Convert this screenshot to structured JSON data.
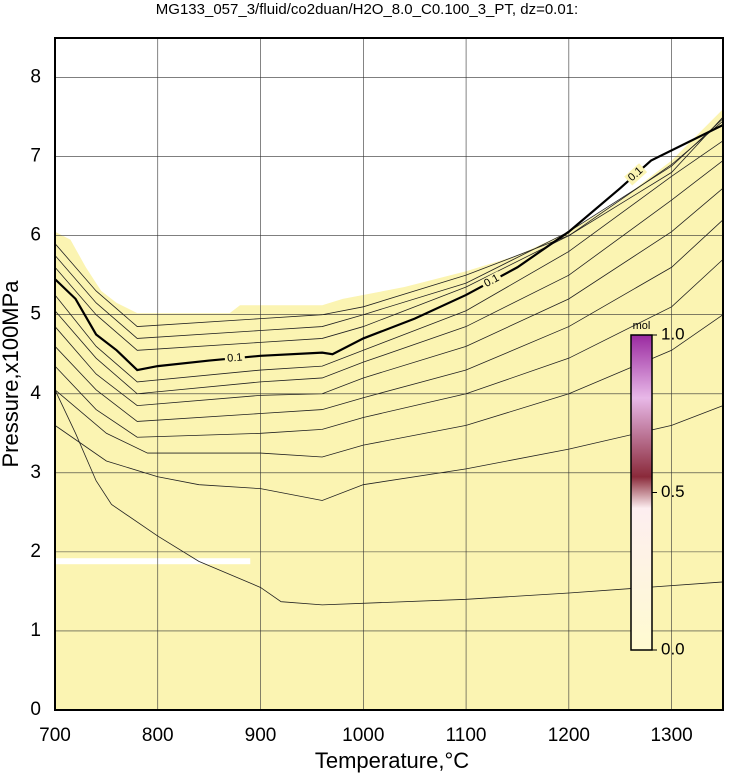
{
  "chart_data": {
    "type": "contour",
    "title": "MG133_057_3/fluid/co2duan/H2O_8.0_C0.100_3_PT, dz=0.01:",
    "xlabel": "Temperature,°C",
    "ylabel": "Pressure,x100MPa",
    "xlim": [
      700,
      1350
    ],
    "ylim": [
      0,
      8.5
    ],
    "xticks": [
      700,
      800,
      900,
      1000,
      1100,
      1200,
      1300
    ],
    "yticks": [
      0,
      1,
      2,
      3,
      4,
      5,
      6,
      7,
      8
    ],
    "grid": true,
    "domain_top": {
      "color": "#fbf4b2",
      "x": [
        700,
        715,
        730,
        745,
        760,
        780,
        870,
        880,
        960,
        980,
        1040,
        1100,
        1150,
        1200,
        1250,
        1300,
        1350
      ],
      "y": [
        6.05,
        5.95,
        5.6,
        5.3,
        5.15,
        5.02,
        5.02,
        5.12,
        5.12,
        5.2,
        5.35,
        5.55,
        5.75,
        6.05,
        6.45,
        6.95,
        7.6
      ]
    },
    "contours": [
      {
        "x": [
          700,
          740,
          780,
          900,
          960,
          1000,
          1100,
          1200,
          1300,
          1350
        ],
        "y": [
          5.9,
          5.3,
          4.85,
          4.95,
          5.0,
          5.1,
          5.5,
          6.0,
          6.8,
          7.5
        ]
      },
      {
        "x": [
          700,
          740,
          780,
          900,
          960,
          1000,
          1100,
          1200,
          1300,
          1350
        ],
        "y": [
          5.75,
          5.15,
          4.7,
          4.8,
          4.85,
          5.0,
          5.4,
          6.05,
          6.88,
          7.48
        ]
      },
      {
        "x": [
          700,
          740,
          780,
          900,
          960,
          1000,
          1100,
          1200,
          1300,
          1350
        ],
        "y": [
          5.6,
          5.0,
          4.55,
          4.65,
          4.7,
          4.85,
          5.35,
          6.0,
          6.9,
          7.45
        ]
      },
      {
        "label": "0.1",
        "x": [
          700,
          720,
          740,
          760,
          780,
          800,
          850,
          900,
          960,
          970,
          1000,
          1050,
          1100,
          1150,
          1200,
          1250,
          1280,
          1350
        ],
        "y": [
          5.45,
          5.2,
          4.75,
          4.55,
          4.3,
          4.35,
          4.42,
          4.48,
          4.52,
          4.5,
          4.7,
          4.95,
          5.25,
          5.6,
          6.05,
          6.6,
          6.95,
          7.4
        ]
      },
      {
        "x": [
          700,
          740,
          780,
          900,
          960,
          1000,
          1100,
          1200,
          1300,
          1350
        ],
        "y": [
          5.25,
          4.6,
          4.15,
          4.3,
          4.35,
          4.55,
          5.05,
          5.8,
          6.75,
          7.2
        ]
      },
      {
        "x": [
          700,
          740,
          780,
          900,
          960,
          1000,
          1100,
          1200,
          1300,
          1350
        ],
        "y": [
          5.05,
          4.45,
          4.0,
          4.15,
          4.2,
          4.4,
          4.85,
          5.5,
          6.45,
          6.95
        ]
      },
      {
        "x": [
          700,
          740,
          780,
          900,
          960,
          1000,
          1100,
          1200,
          1300,
          1350
        ],
        "y": [
          4.85,
          4.25,
          3.85,
          3.98,
          4.0,
          4.2,
          4.6,
          5.2,
          6.05,
          6.6
        ]
      },
      {
        "x": [
          700,
          740,
          780,
          900,
          960,
          1000,
          1100,
          1200,
          1300,
          1350
        ],
        "y": [
          4.6,
          4.05,
          3.65,
          3.75,
          3.8,
          3.95,
          4.3,
          4.85,
          5.6,
          6.2
        ]
      },
      {
        "x": [
          700,
          740,
          780,
          900,
          960,
          1000,
          1100,
          1200,
          1300,
          1350
        ],
        "y": [
          4.35,
          3.8,
          3.45,
          3.5,
          3.55,
          3.7,
          4.0,
          4.45,
          5.1,
          5.7
        ]
      },
      {
        "x": [
          700,
          750,
          790,
          900,
          960,
          1000,
          1100,
          1200,
          1300,
          1350
        ],
        "y": [
          4.05,
          3.5,
          3.25,
          3.25,
          3.2,
          3.35,
          3.6,
          4.0,
          4.55,
          5.0
        ]
      },
      {
        "x": [
          700,
          750,
          800,
          840,
          900,
          960,
          1000,
          1100,
          1200,
          1300,
          1350
        ],
        "y": [
          3.6,
          3.15,
          2.95,
          2.85,
          2.8,
          2.65,
          2.85,
          3.05,
          3.3,
          3.6,
          3.85
        ]
      },
      {
        "x": [
          700,
          720,
          740,
          755,
          800,
          840,
          900,
          920,
          960,
          1100,
          1200,
          1350
        ],
        "y": [
          4.05,
          3.5,
          2.9,
          2.6,
          2.2,
          1.88,
          1.55,
          1.37,
          1.33,
          1.4,
          1.48,
          1.62
        ]
      }
    ],
    "colorbar": {
      "label": "mol",
      "lim": [
        0,
        1
      ],
      "ticks": [
        {
          "value": 0,
          "label": "0.0"
        },
        {
          "value": 0.5,
          "label": "0.5"
        },
        {
          "value": 1,
          "label": "1.0"
        }
      ]
    }
  }
}
